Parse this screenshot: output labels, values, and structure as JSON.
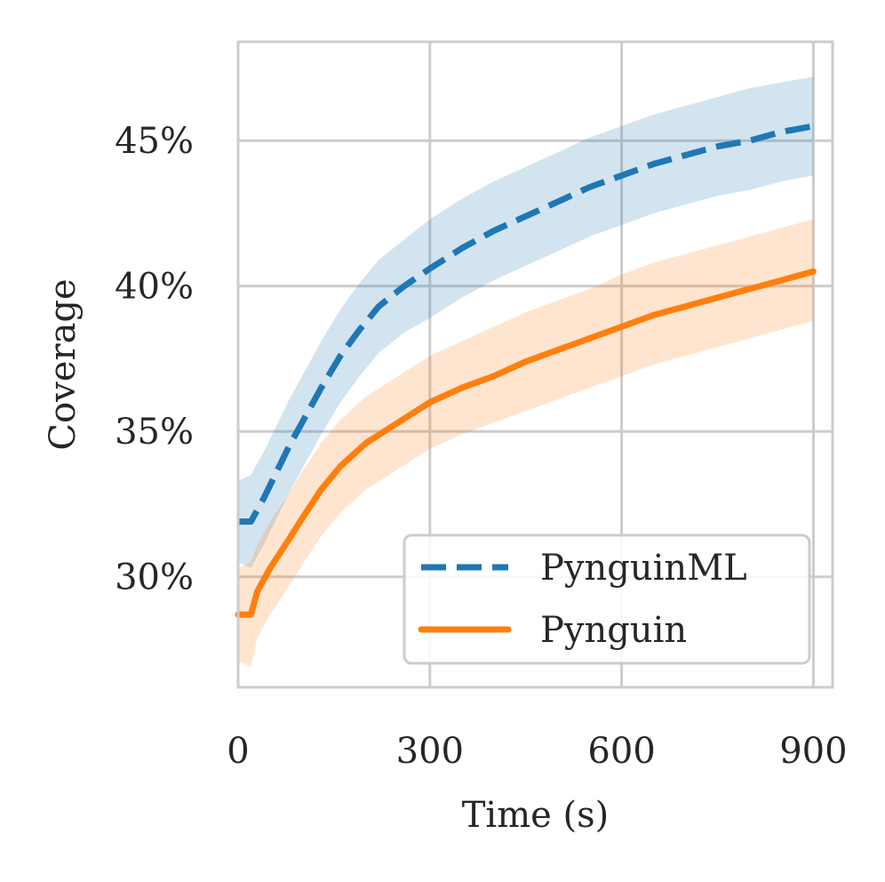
{
  "chart_data": {
    "type": "line",
    "title": "",
    "xlabel": "Time (s)",
    "ylabel": "Coverage",
    "xlim": [
      0,
      930
    ],
    "ylim": [
      26.2,
      48.4
    ],
    "xticks": [
      0,
      300,
      600,
      900
    ],
    "xtick_labels": [
      "0",
      "300",
      "600",
      "900"
    ],
    "yticks": [
      30,
      35,
      40,
      45
    ],
    "ytick_labels": [
      "30%",
      "35%",
      "40%",
      "45%"
    ],
    "grid": true,
    "legend_position": "lower-right",
    "series": [
      {
        "name": "PynguinML",
        "color": "#1f77b4",
        "style": "dashed",
        "x": [
          0,
          20,
          40,
          60,
          80,
          100,
          130,
          160,
          190,
          220,
          260,
          300,
          350,
          400,
          450,
          500,
          550,
          600,
          650,
          700,
          750,
          800,
          850,
          900
        ],
        "y": [
          31.9,
          31.9,
          32.7,
          33.6,
          34.5,
          35.3,
          36.5,
          37.6,
          38.5,
          39.3,
          40.0,
          40.6,
          41.3,
          41.9,
          42.4,
          42.9,
          43.4,
          43.8,
          44.2,
          44.5,
          44.8,
          45.0,
          45.3,
          45.5
        ],
        "upper": [
          33.3,
          33.5,
          34.3,
          35.2,
          36.1,
          36.9,
          38.1,
          39.2,
          40.1,
          40.9,
          41.6,
          42.3,
          43.0,
          43.6,
          44.1,
          44.6,
          45.1,
          45.5,
          45.9,
          46.2,
          46.5,
          46.8,
          47.0,
          47.2
        ],
        "lower": [
          30.5,
          30.3,
          31.1,
          32.0,
          32.9,
          33.7,
          34.9,
          36.0,
          36.9,
          37.7,
          38.4,
          38.9,
          39.6,
          40.2,
          40.7,
          41.2,
          41.7,
          42.1,
          42.5,
          42.8,
          43.1,
          43.3,
          43.6,
          43.8
        ]
      },
      {
        "name": "Pynguin",
        "color": "#ff7f0e",
        "style": "solid",
        "x": [
          0,
          20,
          30,
          50,
          80,
          100,
          130,
          160,
          200,
          250,
          300,
          350,
          400,
          450,
          500,
          550,
          600,
          650,
          700,
          750,
          800,
          850,
          900
        ],
        "y": [
          28.7,
          28.7,
          29.5,
          30.3,
          31.3,
          32.0,
          33.0,
          33.8,
          34.6,
          35.3,
          36.0,
          36.5,
          36.9,
          37.4,
          37.8,
          38.2,
          38.6,
          39.0,
          39.3,
          39.6,
          39.9,
          40.2,
          40.5
        ],
        "upper": [
          30.3,
          30.5,
          31.1,
          31.9,
          32.9,
          33.6,
          34.6,
          35.4,
          36.2,
          36.9,
          37.6,
          38.1,
          38.6,
          39.1,
          39.5,
          39.9,
          40.4,
          40.8,
          41.1,
          41.4,
          41.7,
          42.0,
          42.3
        ],
        "lower": [
          27.1,
          26.9,
          27.9,
          28.7,
          29.7,
          30.4,
          31.4,
          32.2,
          33.0,
          33.7,
          34.4,
          34.9,
          35.3,
          35.7,
          36.1,
          36.5,
          36.9,
          37.3,
          37.6,
          37.9,
          38.2,
          38.5,
          38.8
        ]
      }
    ]
  }
}
